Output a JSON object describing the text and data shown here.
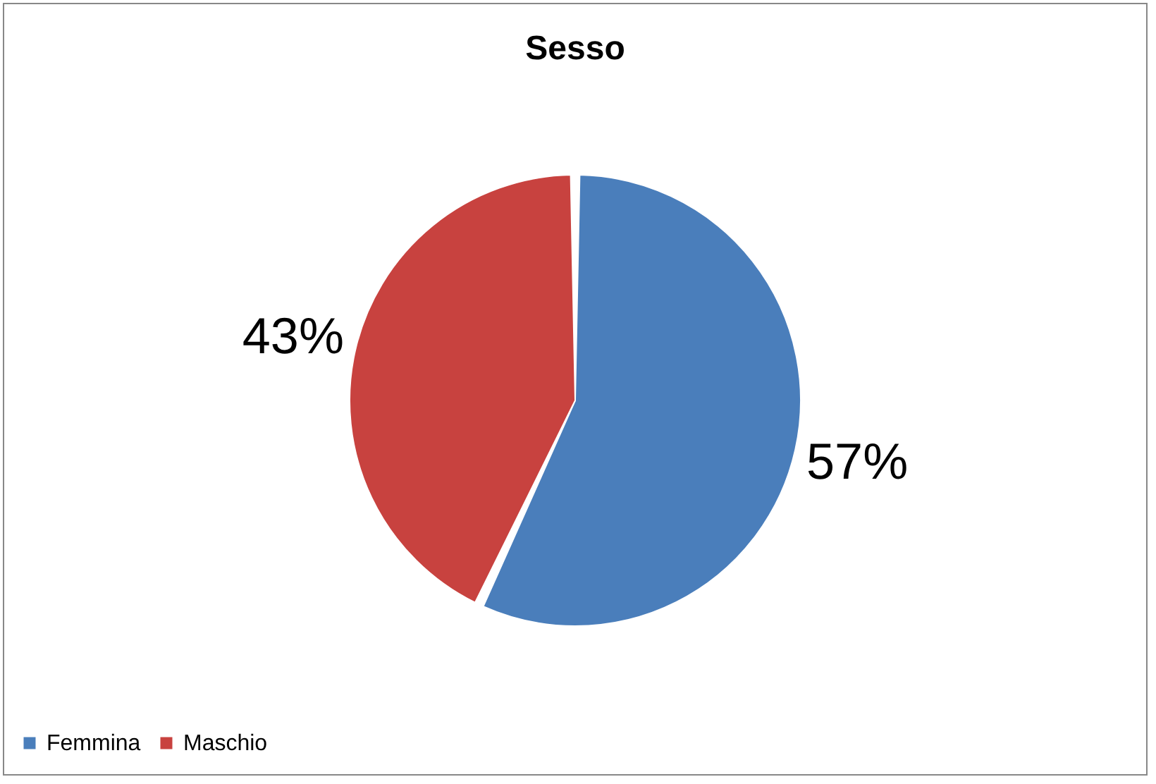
{
  "chart_data": {
    "type": "pie",
    "title": "Sesso",
    "categories": [
      "Femmina",
      "Maschio"
    ],
    "values": [
      57,
      43
    ],
    "colors": [
      "#4a7ebb",
      "#c8423f"
    ],
    "value_labels": [
      "57%",
      "43%"
    ],
    "legend": "bottom"
  }
}
